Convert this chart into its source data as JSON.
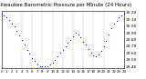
{
  "title": "Milwaukee Barometric Pressure per Minute (24 Hours)",
  "title_fontsize": 4.0,
  "dot_color": "blue",
  "dot_size": 0.8,
  "background_color": "#ffffff",
  "grid_color": "#888888",
  "xlim": [
    0,
    1440
  ],
  "ylim": [
    29.38,
    30.22
  ],
  "yticks": [
    29.4,
    29.5,
    29.6,
    29.7,
    29.8,
    29.9,
    30.0,
    30.1,
    30.2
  ],
  "ytick_fontsize": 3.2,
  "xtick_fontsize": 2.8,
  "xticks": [
    0,
    60,
    120,
    180,
    240,
    300,
    360,
    420,
    480,
    540,
    600,
    660,
    720,
    780,
    840,
    900,
    960,
    1020,
    1080,
    1140,
    1200,
    1260,
    1320,
    1380,
    1440
  ],
  "xtick_labels": [
    "0",
    "1",
    "2",
    "3",
    "4",
    "5",
    "6",
    "7",
    "8",
    "9",
    "10",
    "11",
    "12",
    "13",
    "14",
    "15",
    "16",
    "17",
    "18",
    "19",
    "20",
    "21",
    "22",
    "23",
    "24"
  ],
  "vgrid_positions": [
    240,
    360,
    480,
    600,
    720,
    840,
    960,
    1080,
    1200
  ],
  "data_x": [
    0,
    30,
    60,
    90,
    120,
    150,
    180,
    210,
    240,
    270,
    300,
    330,
    360,
    390,
    420,
    450,
    480,
    510,
    540,
    570,
    600,
    630,
    660,
    690,
    720,
    750,
    780,
    810,
    840,
    870,
    900,
    930,
    960,
    990,
    1020,
    1050,
    1080,
    1110,
    1140,
    1170,
    1200,
    1230,
    1260,
    1290,
    1320,
    1350,
    1380,
    1410,
    1440
  ],
  "data_y": [
    30.18,
    30.16,
    30.13,
    30.09,
    30.04,
    29.99,
    29.93,
    29.86,
    29.79,
    29.72,
    29.65,
    29.59,
    29.53,
    29.48,
    29.43,
    29.41,
    29.4,
    29.4,
    29.41,
    29.43,
    29.46,
    29.5,
    29.55,
    29.6,
    29.65,
    29.7,
    29.75,
    29.8,
    29.85,
    29.9,
    29.88,
    29.83,
    29.77,
    29.72,
    29.66,
    29.6,
    29.56,
    29.55,
    29.58,
    29.63,
    29.7,
    29.78,
    29.87,
    29.97,
    30.03,
    30.08,
    30.13,
    30.16,
    30.18
  ]
}
